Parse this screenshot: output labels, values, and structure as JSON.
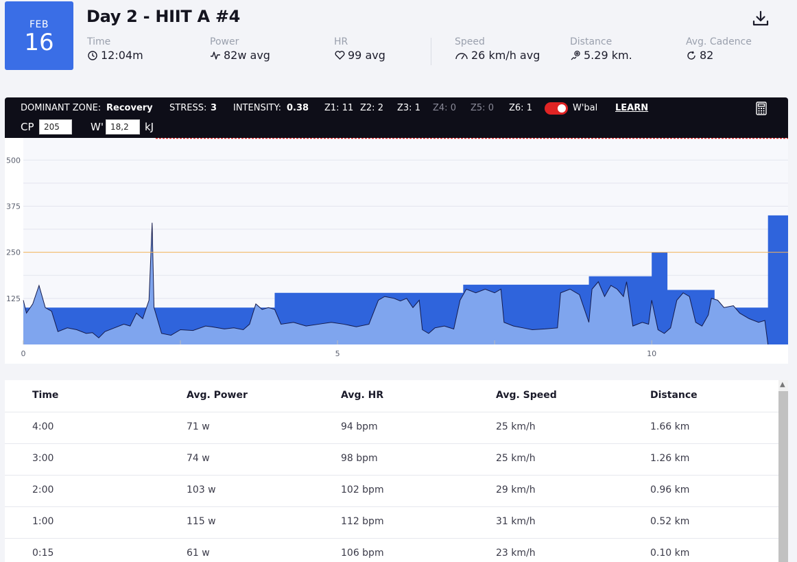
{
  "header": {
    "date_month": "FEB",
    "date_day": "16",
    "title": "Day 2 - HIIT A #4",
    "download_icon": "download-icon"
  },
  "stats": [
    {
      "label": "Time",
      "value": "12:04m",
      "icon": "clock-icon"
    },
    {
      "label": "Power",
      "value": "82w avg",
      "icon": "pulse-icon"
    },
    {
      "label": "HR",
      "value": "99 avg",
      "icon": "heart-icon"
    },
    {
      "label": "Speed",
      "value": "26 km/h avg",
      "icon": "speedometer-icon"
    },
    {
      "label": "Distance",
      "value": "5.29 km.",
      "icon": "route-icon"
    },
    {
      "label": "Avg. Cadence",
      "value": "82",
      "icon": "cadence-icon"
    }
  ],
  "zones": {
    "dominant_label": "DOMINANT ZONE:",
    "dominant_value": "Recovery",
    "stress_label": "STRESS:",
    "stress_value": "3",
    "intensity_label": "INTENSITY:",
    "intensity_value": "0.38",
    "z1": "Z1: 11",
    "z2": "Z2: 2",
    "z3": "Z3: 1",
    "z4": "Z4: 0",
    "z5": "Z5: 0",
    "z6": "Z6: 1",
    "wbal_label": "W'bal",
    "wbal_on": true,
    "learn_label": "LEARN",
    "cp_label": "CP",
    "cp_value": "205",
    "w_label": "W'",
    "w_value": "18,2",
    "w_unit": "kJ"
  },
  "chart_data": {
    "type": "area",
    "y_ticks": [
      125,
      250,
      375,
      500
    ],
    "x_ticks": [
      0,
      5,
      10
    ],
    "ylim": [
      0,
      560
    ],
    "xlim": [
      0,
      12.17
    ],
    "reference_line": {
      "value": 250,
      "color": "#f5b55a"
    },
    "colors": {
      "target": "#2f64dc",
      "actual_fill": "#7fa5ee",
      "actual_line": "#141a4a",
      "grid": "#e3e5ee"
    },
    "series": [
      {
        "values": [
          [
            0,
            100
          ],
          [
            4.0,
            100
          ],
          [
            4.0,
            140
          ],
          [
            7.0,
            140
          ],
          [
            7.0,
            162
          ],
          [
            9.0,
            162
          ],
          [
            9.0,
            185
          ],
          [
            10.0,
            185
          ],
          [
            10.0,
            250
          ],
          [
            10.25,
            250
          ],
          [
            10.25,
            148
          ],
          [
            11.0,
            148
          ],
          [
            11.0,
            100
          ],
          [
            11.85,
            100
          ],
          [
            11.85,
            350
          ],
          [
            12.17,
            350
          ]
        ]
      },
      {
        "values": [
          [
            0,
            120
          ],
          [
            0.05,
            85
          ],
          [
            0.15,
            110
          ],
          [
            0.25,
            160
          ],
          [
            0.35,
            100
          ],
          [
            0.45,
            90
          ],
          [
            0.55,
            35
          ],
          [
            0.7,
            45
          ],
          [
            0.85,
            40
          ],
          [
            1.0,
            30
          ],
          [
            1.1,
            32
          ],
          [
            1.2,
            18
          ],
          [
            1.3,
            35
          ],
          [
            1.45,
            45
          ],
          [
            1.6,
            55
          ],
          [
            1.7,
            50
          ],
          [
            1.8,
            85
          ],
          [
            1.9,
            70
          ],
          [
            2.0,
            120
          ],
          [
            2.05,
            330
          ],
          [
            2.08,
            100
          ],
          [
            2.2,
            30
          ],
          [
            2.35,
            25
          ],
          [
            2.5,
            40
          ],
          [
            2.7,
            38
          ],
          [
            2.9,
            50
          ],
          [
            3.0,
            48
          ],
          [
            3.2,
            42
          ],
          [
            3.35,
            45
          ],
          [
            3.5,
            40
          ],
          [
            3.6,
            55
          ],
          [
            3.7,
            110
          ],
          [
            3.8,
            95
          ],
          [
            3.9,
            100
          ],
          [
            4.0,
            95
          ],
          [
            4.1,
            55
          ],
          [
            4.3,
            60
          ],
          [
            4.5,
            50
          ],
          [
            4.7,
            55
          ],
          [
            4.9,
            60
          ],
          [
            5.1,
            55
          ],
          [
            5.3,
            48
          ],
          [
            5.5,
            55
          ],
          [
            5.65,
            120
          ],
          [
            5.75,
            130
          ],
          [
            5.9,
            125
          ],
          [
            6.0,
            118
          ],
          [
            6.1,
            125
          ],
          [
            6.2,
            100
          ],
          [
            6.3,
            120
          ],
          [
            6.35,
            40
          ],
          [
            6.45,
            30
          ],
          [
            6.55,
            45
          ],
          [
            6.7,
            50
          ],
          [
            6.85,
            42
          ],
          [
            6.95,
            120
          ],
          [
            7.05,
            150
          ],
          [
            7.2,
            140
          ],
          [
            7.35,
            150
          ],
          [
            7.5,
            140
          ],
          [
            7.6,
            150
          ],
          [
            7.65,
            60
          ],
          [
            7.8,
            50
          ],
          [
            7.95,
            45
          ],
          [
            8.1,
            40
          ],
          [
            8.3,
            42
          ],
          [
            8.5,
            45
          ],
          [
            8.55,
            140
          ],
          [
            8.7,
            150
          ],
          [
            8.85,
            135
          ],
          [
            9.0,
            60
          ],
          [
            9.05,
            150
          ],
          [
            9.15,
            170
          ],
          [
            9.25,
            130
          ],
          [
            9.35,
            160
          ],
          [
            9.45,
            150
          ],
          [
            9.55,
            130
          ],
          [
            9.6,
            170
          ],
          [
            9.7,
            50
          ],
          [
            9.85,
            60
          ],
          [
            9.95,
            55
          ],
          [
            10.0,
            120
          ],
          [
            10.1,
            40
          ],
          [
            10.2,
            30
          ],
          [
            10.3,
            45
          ],
          [
            10.4,
            120
          ],
          [
            10.5,
            140
          ],
          [
            10.6,
            130
          ],
          [
            10.7,
            60
          ],
          [
            10.8,
            50
          ],
          [
            10.9,
            80
          ],
          [
            10.95,
            125
          ],
          [
            11.05,
            120
          ],
          [
            11.15,
            100
          ],
          [
            11.3,
            105
          ],
          [
            11.4,
            85
          ],
          [
            11.55,
            70
          ],
          [
            11.7,
            60
          ],
          [
            11.8,
            65
          ],
          [
            11.85,
            0
          ]
        ]
      }
    ]
  },
  "table": {
    "headers": [
      "Time",
      "Avg. Power",
      "Avg. HR",
      "Avg. Speed",
      "Distance"
    ],
    "rows": [
      [
        "4:00",
        "71 w",
        "94 bpm",
        "25 km/h",
        "1.66 km"
      ],
      [
        "3:00",
        "74 w",
        "98 bpm",
        "25 km/h",
        "1.26 km"
      ],
      [
        "2:00",
        "103 w",
        "102 bpm",
        "29 km/h",
        "0.96 km"
      ],
      [
        "1:00",
        "115 w",
        "112 bpm",
        "31 km/h",
        "0.52 km"
      ],
      [
        "0:15",
        "61 w",
        "106 bpm",
        "23 km/h",
        "0.10 km"
      ]
    ]
  }
}
